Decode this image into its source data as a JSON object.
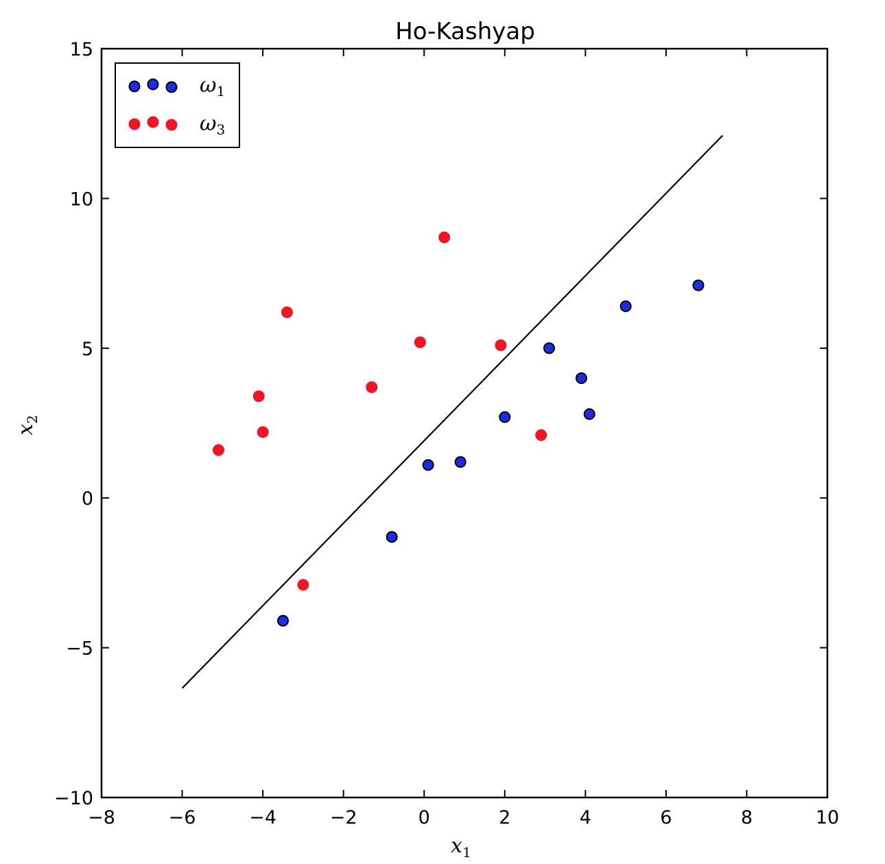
{
  "chart_data": {
    "type": "scatter",
    "title": "Ho-Kashyap",
    "xlabel": {
      "base": "x",
      "sub": "1"
    },
    "ylabel": {
      "base": "x",
      "sub": "2"
    },
    "xlim": [
      -8,
      10
    ],
    "ylim": [
      -10,
      15
    ],
    "xticks": [
      -8,
      -6,
      -4,
      -2,
      0,
      2,
      4,
      6,
      8,
      10
    ],
    "yticks": [
      -10,
      -5,
      0,
      5,
      10,
      15
    ],
    "xtick_labels": [
      "−8",
      "−6",
      "−4",
      "−2",
      "0",
      "2",
      "4",
      "6",
      "8",
      "10"
    ],
    "ytick_labels": [
      "−10",
      "−5",
      "0",
      "5",
      "10",
      "15"
    ],
    "grid": false,
    "legend_position": "top-left",
    "series": [
      {
        "name": {
          "base": "ω",
          "sub": "1"
        },
        "color": "#1a2ee6",
        "edge": "#000000",
        "points": [
          [
            -3.5,
            -4.1
          ],
          [
            -0.8,
            -1.3
          ],
          [
            0.1,
            1.1
          ],
          [
            0.9,
            1.2
          ],
          [
            2.0,
            2.7
          ],
          [
            3.1,
            5.0
          ],
          [
            3.9,
            4.0
          ],
          [
            4.1,
            2.8
          ],
          [
            5.0,
            6.4
          ],
          [
            6.8,
            7.1
          ]
        ]
      },
      {
        "name": {
          "base": "ω",
          "sub": "3"
        },
        "color": "#f01525",
        "edge": "#f01525",
        "points": [
          [
            -5.1,
            1.6
          ],
          [
            -4.1,
            3.4
          ],
          [
            -4.0,
            2.2
          ],
          [
            -3.4,
            6.2
          ],
          [
            -3.0,
            -2.9
          ],
          [
            -1.3,
            3.7
          ],
          [
            -0.1,
            5.2
          ],
          [
            0.5,
            8.7
          ],
          [
            1.9,
            5.1
          ],
          [
            2.9,
            2.1
          ]
        ]
      }
    ],
    "decision_boundary": {
      "x": [
        -6,
        7.4
      ],
      "y": [
        -6.35,
        12.1
      ],
      "color": "#000000"
    }
  }
}
